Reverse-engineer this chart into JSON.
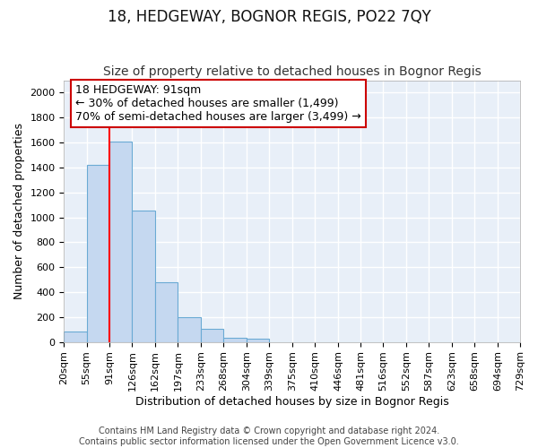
{
  "title": "18, HEDGEWAY, BOGNOR REGIS, PO22 7QY",
  "subtitle": "Size of property relative to detached houses in Bognor Regis",
  "xlabel": "Distribution of detached houses by size in Bognor Regis",
  "ylabel": "Number of detached properties",
  "footnote1": "Contains HM Land Registry data © Crown copyright and database right 2024.",
  "footnote2": "Contains public sector information licensed under the Open Government Licence v3.0.",
  "annotation_line1": "18 HEDGEWAY: 91sqm",
  "annotation_line2": "← 30% of detached houses are smaller (1,499)",
  "annotation_line3": "70% of semi-detached houses are larger (3,499) →",
  "bin_edges": [
    20,
    55,
    91,
    126,
    162,
    197,
    233,
    268,
    304,
    339,
    375,
    410,
    446,
    481,
    516,
    552,
    587,
    623,
    658,
    694,
    729
  ],
  "bar_heights": [
    80,
    1420,
    1610,
    1055,
    480,
    200,
    105,
    35,
    25,
    0,
    0,
    0,
    0,
    0,
    0,
    0,
    0,
    0,
    0,
    0
  ],
  "bar_color": "#c5d8f0",
  "bar_edge_color": "#6aaad4",
  "red_line_x": 91,
  "ylim": [
    0,
    2100
  ],
  "yticks": [
    0,
    200,
    400,
    600,
    800,
    1000,
    1200,
    1400,
    1600,
    1800,
    2000
  ],
  "background_color": "#e8eff8",
  "grid_color": "#ffffff",
  "fig_facecolor": "#ffffff",
  "annotation_box_facecolor": "#ffffff",
  "annotation_box_edgecolor": "#cc0000",
  "title_fontsize": 12,
  "subtitle_fontsize": 10,
  "axis_label_fontsize": 9,
  "tick_fontsize": 8,
  "annotation_fontsize": 9,
  "footnote_fontsize": 7
}
